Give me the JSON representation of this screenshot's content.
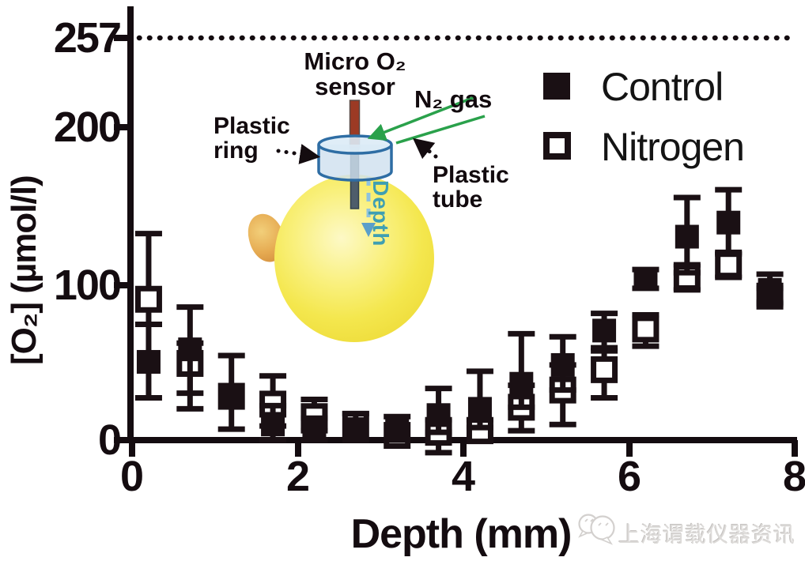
{
  "figure": {
    "y_axis": {
      "label": "[O₂] (µmol/l)",
      "ticks": [
        "257",
        "200",
        "100",
        "0"
      ]
    },
    "x_axis": {
      "label": "Depth (mm)",
      "ticks": [
        "0",
        "2",
        "4",
        "6",
        "8"
      ]
    },
    "legend": {
      "control": "Control",
      "nitrogen": "Nitrogen"
    }
  },
  "inset": {
    "micro_sensor_label": "Micro O₂\nsensor",
    "n2_gas_label": "N₂ gas",
    "plastic_ring_label": "Plastic\nring",
    "plastic_tube_label": "Plastic\ntube",
    "depth_label": "Depth",
    "colors": {
      "ring_fill": "#cfe0ef",
      "ring_stroke": "#2e6da4",
      "sensor_top": "#9c3a24",
      "sensor_shaft": "#4e5d6b",
      "n2_arrow": "#2aa14b",
      "depth_text": "#3f9fb2"
    }
  },
  "watermark": {
    "text": "上海谓载仪器资讯",
    "icon": "wechat-icon"
  },
  "chart_data": {
    "type": "scatter",
    "title": "",
    "xlabel": "Depth (mm)",
    "ylabel": "[O2] (µmol/l)",
    "xlim": [
      0,
      8
    ],
    "ylim": [
      0,
      270
    ],
    "grid": false,
    "legend_position": "upper-right",
    "reference_line": {
      "y": 257,
      "style": "dotted"
    },
    "marker_color": "#1a1014",
    "series": [
      {
        "name": "Control",
        "marker": "filled-square",
        "points": [
          {
            "x": 0.2,
            "y": 50,
            "lo": 27,
            "hi": 74
          },
          {
            "x": 0.7,
            "y": 58,
            "lo": 30,
            "hi": 85
          },
          {
            "x": 1.2,
            "y": 28,
            "lo": 7,
            "hi": 54
          },
          {
            "x": 1.7,
            "y": 10,
            "lo": 0,
            "hi": 22
          },
          {
            "x": 2.2,
            "y": 6,
            "lo": 0,
            "hi": 14
          },
          {
            "x": 2.7,
            "y": 7,
            "lo": 0,
            "hi": 17
          },
          {
            "x": 3.2,
            "y": 6,
            "lo": 0,
            "hi": 15
          },
          {
            "x": 3.7,
            "y": 16,
            "lo": 5,
            "hi": 33
          },
          {
            "x": 4.2,
            "y": 20,
            "lo": 8,
            "hi": 44
          },
          {
            "x": 4.7,
            "y": 36,
            "lo": 21,
            "hi": 68
          },
          {
            "x": 5.2,
            "y": 48,
            "lo": 32,
            "hi": 66
          },
          {
            "x": 5.7,
            "y": 70,
            "lo": 59,
            "hi": 81
          },
          {
            "x": 6.2,
            "y": 103,
            "lo": 97,
            "hi": 109
          },
          {
            "x": 6.7,
            "y": 130,
            "lo": 107,
            "hi": 155
          },
          {
            "x": 7.2,
            "y": 139,
            "lo": 120,
            "hi": 160
          },
          {
            "x": 7.7,
            "y": 96,
            "lo": 88,
            "hi": 106
          }
        ]
      },
      {
        "name": "Nitrogen",
        "marker": "open-square",
        "points": [
          {
            "x": 0.2,
            "y": 90,
            "lo": 74,
            "hi": 132
          },
          {
            "x": 0.7,
            "y": 49,
            "lo": 20,
            "hi": 62
          },
          {
            "x": 1.2,
            "y": 28,
            "lo": null,
            "hi": null
          },
          {
            "x": 1.7,
            "y": 23,
            "lo": 9,
            "hi": 41
          },
          {
            "x": 2.2,
            "y": 15,
            "lo": 6,
            "hi": 26
          },
          {
            "x": 2.7,
            "y": 10,
            "lo": null,
            "hi": null
          },
          {
            "x": 3.2,
            "y": 3,
            "lo": null,
            "hi": null
          },
          {
            "x": 3.7,
            "y": 5,
            "lo": -8,
            "hi": 13
          },
          {
            "x": 4.2,
            "y": 6,
            "lo": 0,
            "hi": 13
          },
          {
            "x": 4.7,
            "y": 21,
            "lo": 6,
            "hi": 35
          },
          {
            "x": 5.2,
            "y": 32,
            "lo": 10,
            "hi": 48
          },
          {
            "x": 5.7,
            "y": 45,
            "lo": 27,
            "hi": 57
          },
          {
            "x": 6.2,
            "y": 71,
            "lo": 60,
            "hi": 80
          },
          {
            "x": 6.7,
            "y": 104,
            "lo": 96,
            "hi": 112
          },
          {
            "x": 7.2,
            "y": 112,
            "lo": 104,
            "hi": 119
          },
          {
            "x": 7.7,
            "y": 92,
            "lo": 87,
            "hi": 97
          }
        ]
      }
    ]
  }
}
